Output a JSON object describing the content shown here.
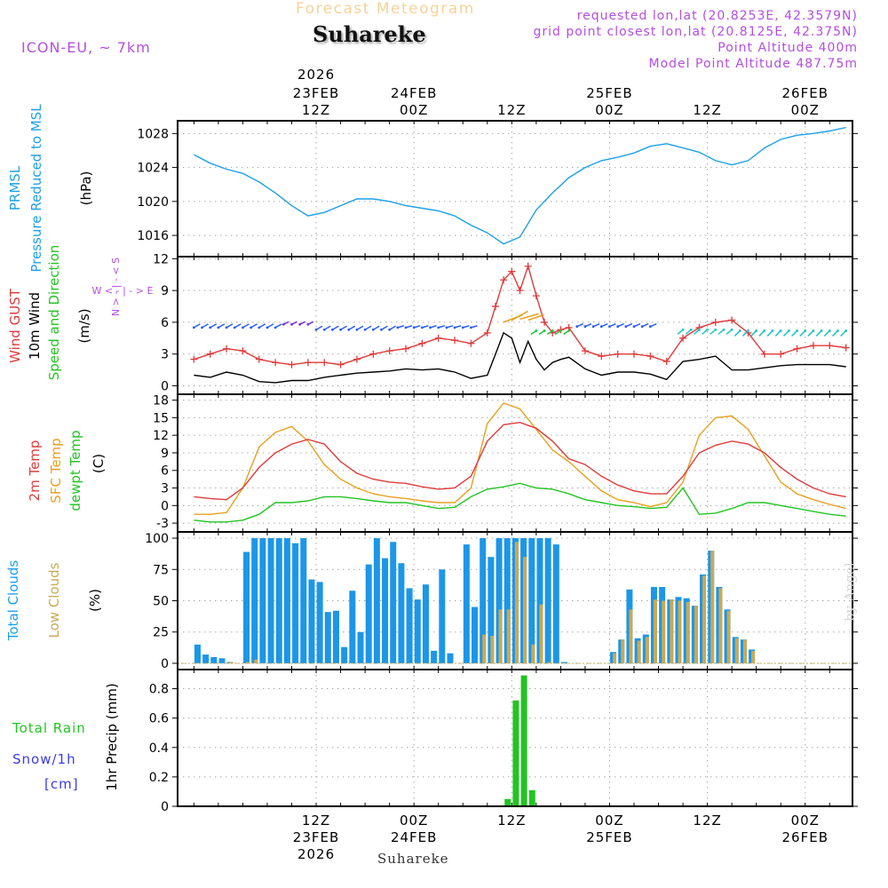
{
  "header": {
    "title": "Forecast Meteogram",
    "location": "Suhareke",
    "model": "ICON-EU, ~ 7km",
    "requested": "requested lon,lat (20.8253E, 42.3579N)",
    "gridpoint": "grid point closest lon,lat (20.8125E, 42.375N)",
    "point_alt": "Point Altitude 400m",
    "model_alt": "Model Point Altitude 487.75m",
    "footer": "Suhareke",
    "watermark": "by Angel",
    "colors": {
      "title": "#f5d29a",
      "purple": "#b44ee0"
    }
  },
  "time_axis": {
    "labels": [
      {
        "h": 15,
        "time": "12Z",
        "date": "23FEB",
        "year": "2026"
      },
      {
        "h": 27,
        "time": "00Z",
        "date": "24FEB",
        "year": ""
      },
      {
        "h": 39,
        "time": "12Z",
        "date": "",
        "year": ""
      },
      {
        "h": 51,
        "time": "00Z",
        "date": "25FEB",
        "year": ""
      },
      {
        "h": 63,
        "time": "12Z",
        "date": "",
        "year": ""
      },
      {
        "h": 75,
        "time": "00Z",
        "date": "26FEB",
        "year": ""
      }
    ]
  },
  "panels": {
    "pressure": {
      "labels": [
        "PRMSL",
        "Pressure Reduced to MSL"
      ],
      "unit": "(hPa)"
    },
    "wind": {
      "labels": [
        "Wind GUST",
        "10m Wind",
        "Speed and Direction"
      ],
      "unit": "(m/s)",
      "compass": {
        "n": "N",
        "s": "S",
        "w": "W",
        "e": "E"
      }
    },
    "temp": {
      "labels": [
        "2m Temp",
        "SFC Temp",
        "dewpt Temp"
      ],
      "unit": "(C)"
    },
    "clouds": {
      "labels": [
        "Total Clouds",
        "Low Clouds"
      ],
      "unit": "(%)"
    },
    "precip": {
      "labels": [
        "Total  Rain",
        "Snow/1h",
        "[cm]"
      ],
      "unit": "1hr Precip (mm)"
    }
  },
  "chart_data": [
    {
      "type": "line",
      "title": "PRMSL Pressure Reduced to MSL",
      "ylabel": "hPa",
      "x_unit": "hours from 23FEB 00Z",
      "ylim": [
        1013.5,
        1029.5
      ],
      "yticks": [
        1016,
        1020,
        1024,
        1028
      ],
      "x": [
        0,
        2,
        4,
        6,
        8,
        10,
        12,
        14,
        16,
        18,
        20,
        22,
        24,
        26,
        28,
        30,
        32,
        34,
        36,
        38,
        40,
        42,
        44,
        46,
        48,
        50,
        52,
        54,
        56,
        58,
        60,
        62,
        64,
        66,
        68,
        70,
        72,
        74,
        76,
        78,
        80
      ],
      "series": [
        {
          "name": "PRMSL",
          "color": "#1ca0e8",
          "values": [
            1025.5,
            1024.5,
            1023.8,
            1023.3,
            1022.3,
            1021.0,
            1019.5,
            1018.3,
            1018.7,
            1019.5,
            1020.3,
            1020.3,
            1020.0,
            1019.5,
            1019.2,
            1018.9,
            1018.3,
            1017.2,
            1016.3,
            1015.0,
            1015.8,
            1019.0,
            1021.0,
            1022.8,
            1024.0,
            1024.8,
            1025.2,
            1025.7,
            1026.5,
            1026.8,
            1026.3,
            1025.8,
            1024.8,
            1024.3,
            1024.8,
            1026.3,
            1027.3,
            1027.8,
            1028.0,
            1028.3,
            1028.7
          ]
        }
      ]
    },
    {
      "type": "line",
      "title": "Wind GUST, 10m Wind Speed and Direction",
      "ylabel": "m/s",
      "x_unit": "hours from 23FEB 00Z",
      "ylim": [
        -0.8,
        12.2
      ],
      "yticks": [
        0,
        3,
        6,
        9,
        12
      ],
      "x": [
        0,
        2,
        4,
        6,
        8,
        10,
        12,
        14,
        16,
        18,
        20,
        22,
        24,
        26,
        28,
        30,
        32,
        34,
        36,
        37,
        38,
        39,
        40,
        41,
        42,
        43,
        44,
        45,
        46,
        48,
        50,
        52,
        54,
        56,
        58,
        60,
        62,
        64,
        66,
        68,
        70,
        72,
        74,
        76,
        78,
        80
      ],
      "series": [
        {
          "name": "Wind GUST",
          "color": "#e03a3a",
          "values": [
            2.5,
            3.0,
            3.5,
            3.3,
            2.5,
            2.2,
            2.0,
            2.2,
            2.2,
            2.0,
            2.5,
            3.0,
            3.3,
            3.5,
            4.0,
            4.5,
            4.3,
            4.0,
            5.0,
            7.5,
            10.0,
            10.8,
            9.0,
            11.3,
            8.5,
            6.0,
            5.0,
            5.3,
            5.5,
            3.3,
            2.8,
            3.0,
            3.0,
            2.8,
            2.3,
            4.5,
            5.5,
            6.0,
            6.2,
            5.0,
            3.0,
            3.0,
            3.5,
            3.8,
            3.8,
            3.6
          ]
        },
        {
          "name": "10m Wind",
          "color": "#000000",
          "values": [
            1.0,
            0.8,
            1.3,
            1.0,
            0.4,
            0.3,
            0.5,
            0.5,
            0.8,
            1.0,
            1.2,
            1.3,
            1.4,
            1.6,
            1.5,
            1.6,
            1.3,
            0.7,
            1.0,
            3.0,
            5.0,
            4.5,
            2.2,
            4.2,
            2.5,
            1.5,
            2.2,
            2.5,
            2.7,
            1.6,
            1.0,
            1.3,
            1.3,
            1.1,
            0.6,
            2.3,
            2.5,
            2.8,
            1.5,
            1.5,
            1.7,
            1.9,
            2.0,
            2.0,
            2.0,
            1.8
          ]
        }
      ]
    },
    {
      "type": "line",
      "title": "2m Temp, SFC Temp, dewpt Temp",
      "ylabel": "C",
      "x_unit": "hours from 23FEB 00Z",
      "ylim": [
        -4.5,
        19
      ],
      "yticks": [
        -3,
        0,
        3,
        6,
        9,
        12,
        15,
        18
      ],
      "x": [
        0,
        2,
        4,
        6,
        8,
        10,
        12,
        14,
        16,
        18,
        20,
        22,
        24,
        26,
        28,
        30,
        32,
        34,
        36,
        38,
        40,
        42,
        44,
        46,
        48,
        50,
        52,
        54,
        56,
        58,
        60,
        62,
        64,
        66,
        68,
        70,
        72,
        74,
        76,
        78,
        80
      ],
      "series": [
        {
          "name": "2m Temp",
          "color": "#e03a3a",
          "values": [
            1.5,
            1.2,
            1.0,
            3.0,
            6.5,
            9.0,
            10.5,
            11.3,
            10.5,
            7.5,
            5.5,
            4.5,
            4.0,
            3.8,
            3.2,
            2.8,
            3.0,
            5.0,
            11.0,
            13.8,
            14.2,
            13.2,
            11.0,
            8.0,
            7.0,
            5.0,
            3.5,
            2.5,
            2.0,
            2.0,
            5.0,
            9.0,
            10.3,
            11.0,
            10.5,
            9.0,
            6.5,
            4.5,
            3.0,
            2.0,
            1.5
          ]
        },
        {
          "name": "SFC Temp",
          "color": "#e8a020",
          "values": [
            -1.5,
            -1.5,
            -1.2,
            3.0,
            10.0,
            12.5,
            13.5,
            11.0,
            7.0,
            4.5,
            3.0,
            2.0,
            1.5,
            1.2,
            0.8,
            0.5,
            0.5,
            3.0,
            14.0,
            17.5,
            16.5,
            13.0,
            9.5,
            7.5,
            5.0,
            2.5,
            1.0,
            0.5,
            -0.2,
            0.5,
            4.0,
            12.0,
            15.0,
            15.3,
            13.0,
            8.5,
            4.0,
            2.0,
            1.0,
            0.2,
            -0.5
          ]
        },
        {
          "name": "dewpt Temp",
          "color": "#22c422",
          "values": [
            -2.5,
            -2.8,
            -2.8,
            -2.5,
            -1.5,
            0.5,
            0.5,
            0.8,
            1.5,
            1.5,
            1.2,
            0.8,
            0.5,
            0.5,
            0.0,
            -0.5,
            -0.3,
            1.5,
            2.8,
            3.2,
            3.8,
            3.0,
            2.8,
            2.0,
            1.0,
            0.5,
            0.0,
            -0.2,
            -0.5,
            -0.3,
            3.0,
            -1.5,
            -1.3,
            -0.5,
            0.5,
            0.5,
            0.0,
            -0.5,
            -1.0,
            -1.5,
            -1.8
          ]
        }
      ]
    },
    {
      "type": "bar",
      "title": "Total Clouds, Low Clouds",
      "ylabel": "%",
      "x_unit": "hour from 23FEB 00Z",
      "ylim": [
        -5,
        105
      ],
      "yticks": [
        0,
        25,
        50,
        75,
        100
      ],
      "x": [
        0,
        1,
        2,
        3,
        4,
        5,
        6,
        7,
        8,
        9,
        10,
        11,
        12,
        13,
        14,
        15,
        16,
        17,
        18,
        19,
        20,
        21,
        22,
        23,
        24,
        25,
        26,
        27,
        28,
        29,
        30,
        31,
        32,
        33,
        34,
        35,
        36,
        37,
        38,
        39,
        40,
        41,
        42,
        43,
        44,
        45,
        46,
        47,
        48,
        49,
        50,
        51,
        52,
        53,
        54,
        55,
        56,
        57,
        58,
        59,
        60,
        61,
        62,
        63,
        64,
        65,
        66,
        67,
        68,
        69,
        70,
        71,
        72,
        73,
        74,
        75,
        76
      ],
      "series": [
        {
          "name": "Total Clouds",
          "color": "#1c96e8",
          "values": [
            15,
            7,
            5,
            4,
            1,
            0,
            89,
            100,
            100,
            100,
            100,
            100,
            96,
            100,
            67,
            65,
            41,
            42,
            13,
            58,
            25,
            79,
            100,
            84,
            97,
            80,
            60,
            51,
            63,
            10,
            75,
            8,
            0,
            95,
            45,
            100,
            85,
            100,
            100,
            100,
            100,
            100,
            100,
            100,
            95,
            1,
            0,
            0,
            0,
            0,
            0,
            9,
            19,
            59,
            20,
            23,
            61,
            61,
            51,
            53,
            52,
            46,
            71,
            90,
            61,
            43,
            21,
            19,
            11,
            0,
            0,
            0,
            0,
            0,
            0,
            0,
            0
          ]
        },
        {
          "name": "Low Clouds",
          "color": "#c8aa55",
          "values": [
            0,
            0,
            0,
            0,
            1,
            0,
            1,
            3,
            0,
            0,
            0,
            0,
            0,
            0,
            0,
            0,
            0,
            0,
            0,
            0,
            0,
            0,
            0,
            0,
            0,
            0,
            0,
            0,
            0,
            0,
            0,
            0,
            0,
            0,
            0,
            23,
            22,
            43,
            43,
            97,
            85,
            15,
            47,
            1,
            0,
            0,
            0,
            0,
            0,
            0,
            0,
            8,
            19,
            43,
            18,
            21,
            51,
            50,
            51,
            50,
            49,
            46,
            70,
            90,
            60,
            42,
            20,
            19,
            10,
            0,
            0,
            0,
            0,
            0,
            0,
            0,
            0
          ]
        }
      ]
    },
    {
      "type": "bar",
      "title": "1hr Precip",
      "ylabel": "1hr Precip (mm)",
      "x_unit": "hour from 23FEB 00Z",
      "ylim": [
        0,
        0.93
      ],
      "yticks": [
        0,
        0.2,
        0.4,
        0.6,
        0.8
      ],
      "x": [
        38,
        39,
        40,
        41
      ],
      "series": [
        {
          "name": "Total Rain",
          "color": "#22c422",
          "values": [
            0.05,
            0.72,
            0.89,
            0.11
          ]
        }
      ]
    }
  ]
}
